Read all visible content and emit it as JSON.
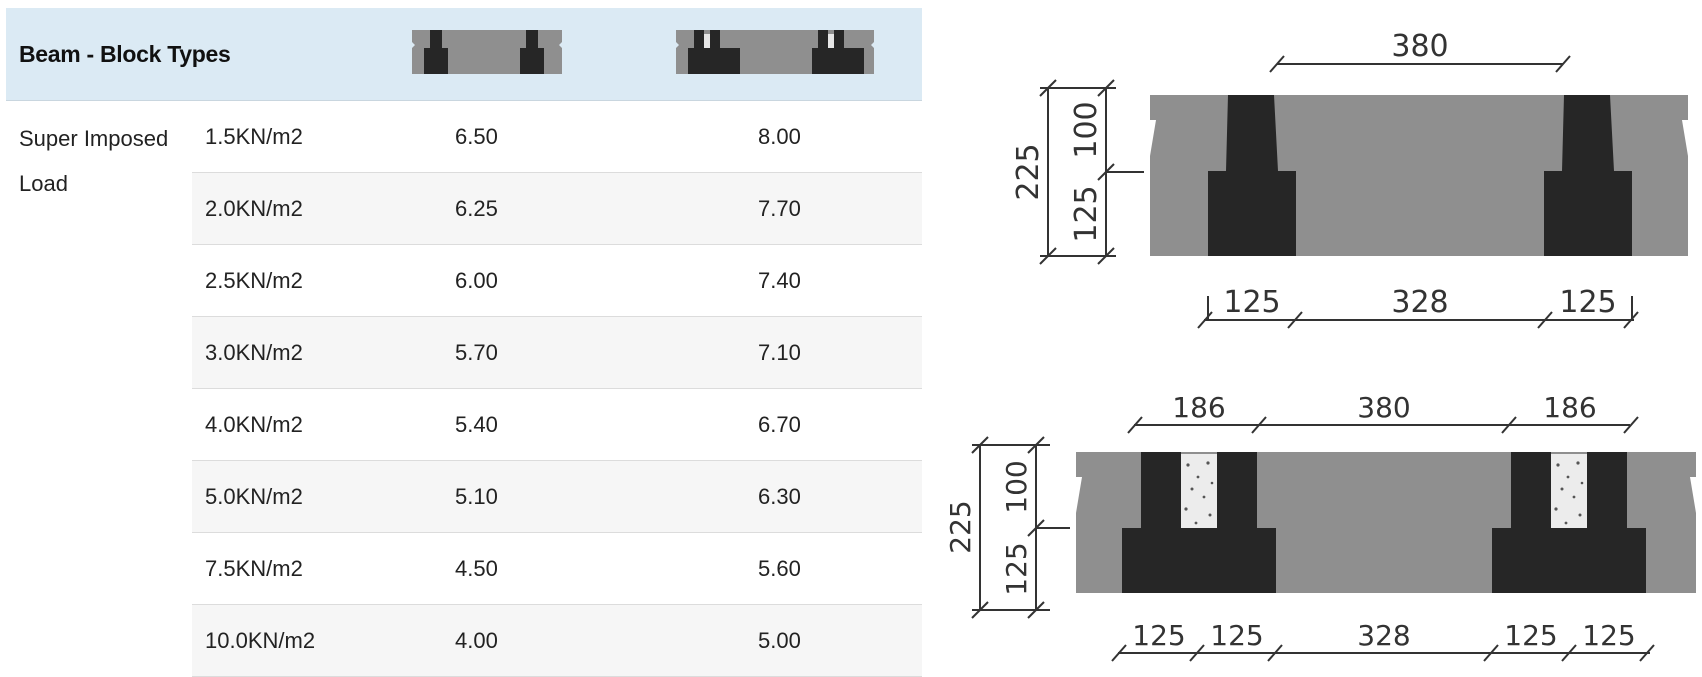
{
  "table": {
    "header_title": "Beam - Block Types",
    "group_label": "Super Imposed Load",
    "rows": [
      {
        "load": "1.5KN/m2",
        "single": "6.50",
        "double": "8.00"
      },
      {
        "load": "2.0KN/m2",
        "single": "6.25",
        "double": "7.70"
      },
      {
        "load": "2.5KN/m2",
        "single": "6.00",
        "double": "7.40"
      },
      {
        "load": "3.0KN/m2",
        "single": "5.70",
        "double": "7.10"
      },
      {
        "load": "4.0KN/m2",
        "single": "5.40",
        "double": "6.70"
      },
      {
        "load": "5.0KN/m2",
        "single": "5.10",
        "double": "6.30"
      },
      {
        "load": "7.5KN/m2",
        "single": "4.50",
        "double": "5.60"
      },
      {
        "load": "10.0KN/m2",
        "single": "4.00",
        "double": "5.00"
      }
    ]
  },
  "diagram_single": {
    "dim_top": "380",
    "dim_height_total": "225",
    "dim_height_upper": "100",
    "dim_height_lower": "125",
    "dim_bottom": [
      "125",
      "328",
      "125"
    ]
  },
  "diagram_double": {
    "dim_top": [
      "186",
      "380",
      "186"
    ],
    "dim_height_total": "225",
    "dim_height_upper": "100",
    "dim_height_lower": "125",
    "dim_bottom": [
      "125",
      "125",
      "328",
      "125",
      "125"
    ]
  },
  "colors": {
    "header_bg": "#dbeaf4",
    "block_grey": "#8f8f8f",
    "beam_black": "#262626",
    "dim_line": "#333333"
  }
}
